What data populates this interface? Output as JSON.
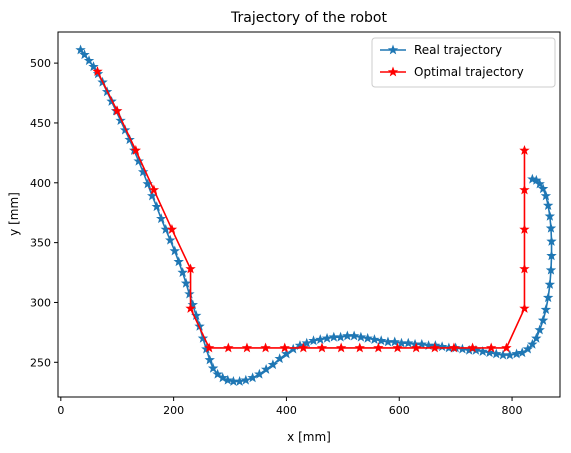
{
  "chart_data": {
    "type": "line",
    "title": "Trajectory of the robot",
    "xlabel": "x [mm]",
    "ylabel": "y [mm]",
    "xlim": [
      -5,
      885
    ],
    "ylim": [
      221,
      526
    ],
    "xticks": [
      0,
      200,
      400,
      600,
      800
    ],
    "yticks": [
      250,
      300,
      350,
      400,
      450,
      500
    ],
    "grid": false,
    "legend_position": "top-right",
    "series": [
      {
        "name": "Real trajectory",
        "color": "#1f77b4",
        "marker": "star",
        "x": [
          35,
          42,
          50,
          58,
          66,
          74,
          82,
          90,
          98,
          106,
          114,
          122,
          130,
          138,
          146,
          154,
          162,
          170,
          178,
          186,
          194,
          202,
          209,
          216,
          222,
          228,
          234,
          240,
          246,
          252,
          258,
          264,
          270,
          278,
          287,
          296,
          306,
          317,
          328,
          340,
          352,
          364,
          376,
          388,
          400,
          412,
          424,
          436,
          448,
          460,
          472,
          484,
          496,
          508,
          520,
          532,
          544,
          556,
          568,
          580,
          592,
          604,
          616,
          628,
          640,
          652,
          664,
          676,
          688,
          700,
          712,
          724,
          736,
          748,
          760,
          772,
          784,
          796,
          808,
          818,
          828,
          836,
          843,
          849,
          855,
          860,
          864,
          867,
          869,
          870,
          870,
          869,
          867,
          864,
          860,
          855,
          849,
          843,
          836
        ],
        "y": [
          511,
          507,
          502,
          497,
          491,
          484,
          476,
          468,
          460,
          452,
          444,
          436,
          427,
          418,
          409,
          399,
          389,
          380,
          370,
          361,
          352,
          343,
          334,
          325,
          316,
          307,
          298,
          289,
          280,
          270,
          261,
          252,
          245,
          240,
          237,
          235,
          234,
          234,
          235,
          237,
          240,
          244,
          248,
          253,
          257,
          261,
          264,
          266,
          268,
          269,
          270,
          271,
          271,
          272,
          272,
          271,
          270,
          269,
          268,
          267,
          267,
          266,
          266,
          265,
          265,
          264,
          264,
          263,
          262,
          262,
          261,
          260,
          260,
          259,
          258,
          257,
          256,
          256,
          257,
          258,
          261,
          265,
          270,
          277,
          285,
          294,
          304,
          315,
          327,
          339,
          351,
          362,
          372,
          381,
          389,
          395,
          399,
          402,
          403
        ]
      },
      {
        "name": "Optimal trajectory",
        "color": "#ff0000",
        "marker": "star",
        "x": [
          65,
          100,
          133,
          165,
          197,
          230,
          230,
          263,
          297,
          330,
          363,
          397,
          430,
          463,
          497,
          530,
          563,
          597,
          630,
          663,
          697,
          730,
          763,
          790,
          822,
          822,
          822,
          822,
          822
        ],
        "y": [
          493,
          460,
          427,
          394,
          361,
          328,
          295,
          262,
          262,
          262,
          262,
          262,
          262,
          262,
          262,
          262,
          262,
          262,
          262,
          262,
          262,
          262,
          262,
          262,
          295,
          328,
          361,
          394,
          427
        ]
      }
    ]
  }
}
